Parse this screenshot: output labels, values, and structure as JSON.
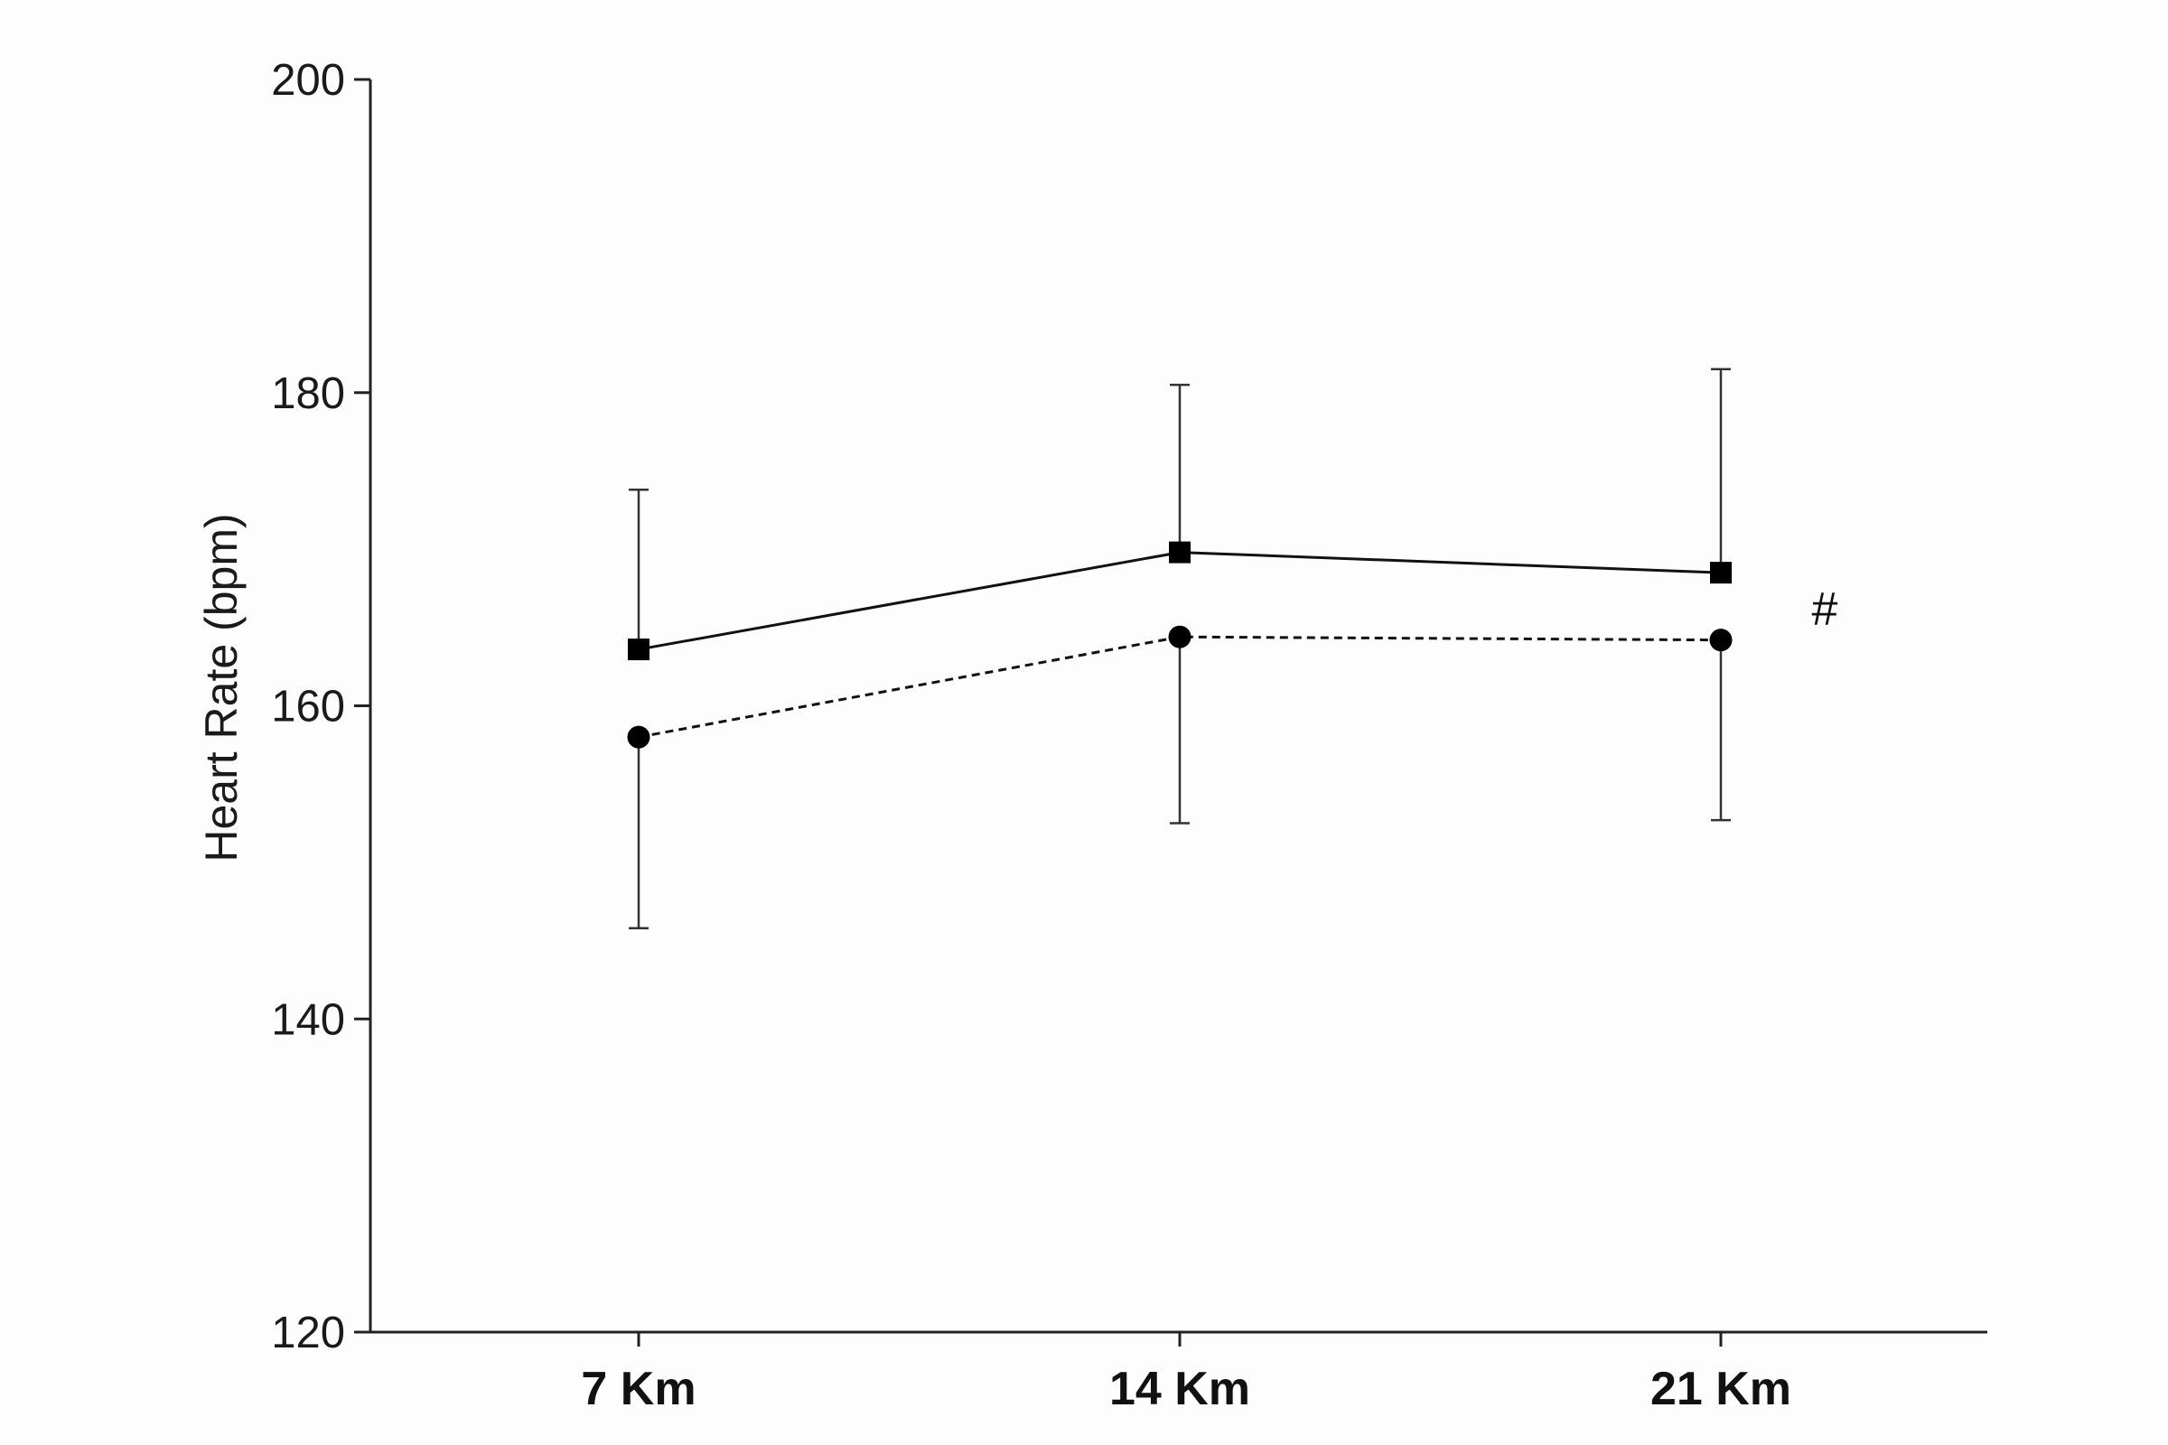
{
  "chart_data": {
    "type": "line",
    "categories": [
      "7 Km",
      "14 Km",
      "21 Km"
    ],
    "ylabel": "Heart Rate (bpm)",
    "ylim": [
      120,
      200
    ],
    "yticks": [
      "120",
      "140",
      "160",
      "180",
      "200"
    ],
    "grid": false,
    "series": [
      {
        "marker": "square",
        "line_style": "solid",
        "values": [
          163.6,
          169.8,
          168.5
        ],
        "error_upper": [
          173.8,
          180.5,
          181.5
        ]
      },
      {
        "marker": "circle",
        "line_style": "dashed",
        "values": [
          158.0,
          164.4,
          164.2
        ],
        "error_lower": [
          145.8,
          152.5,
          152.7
        ]
      }
    ],
    "annotations": [
      {
        "text": "#",
        "near_category": "21 Km"
      }
    ]
  }
}
